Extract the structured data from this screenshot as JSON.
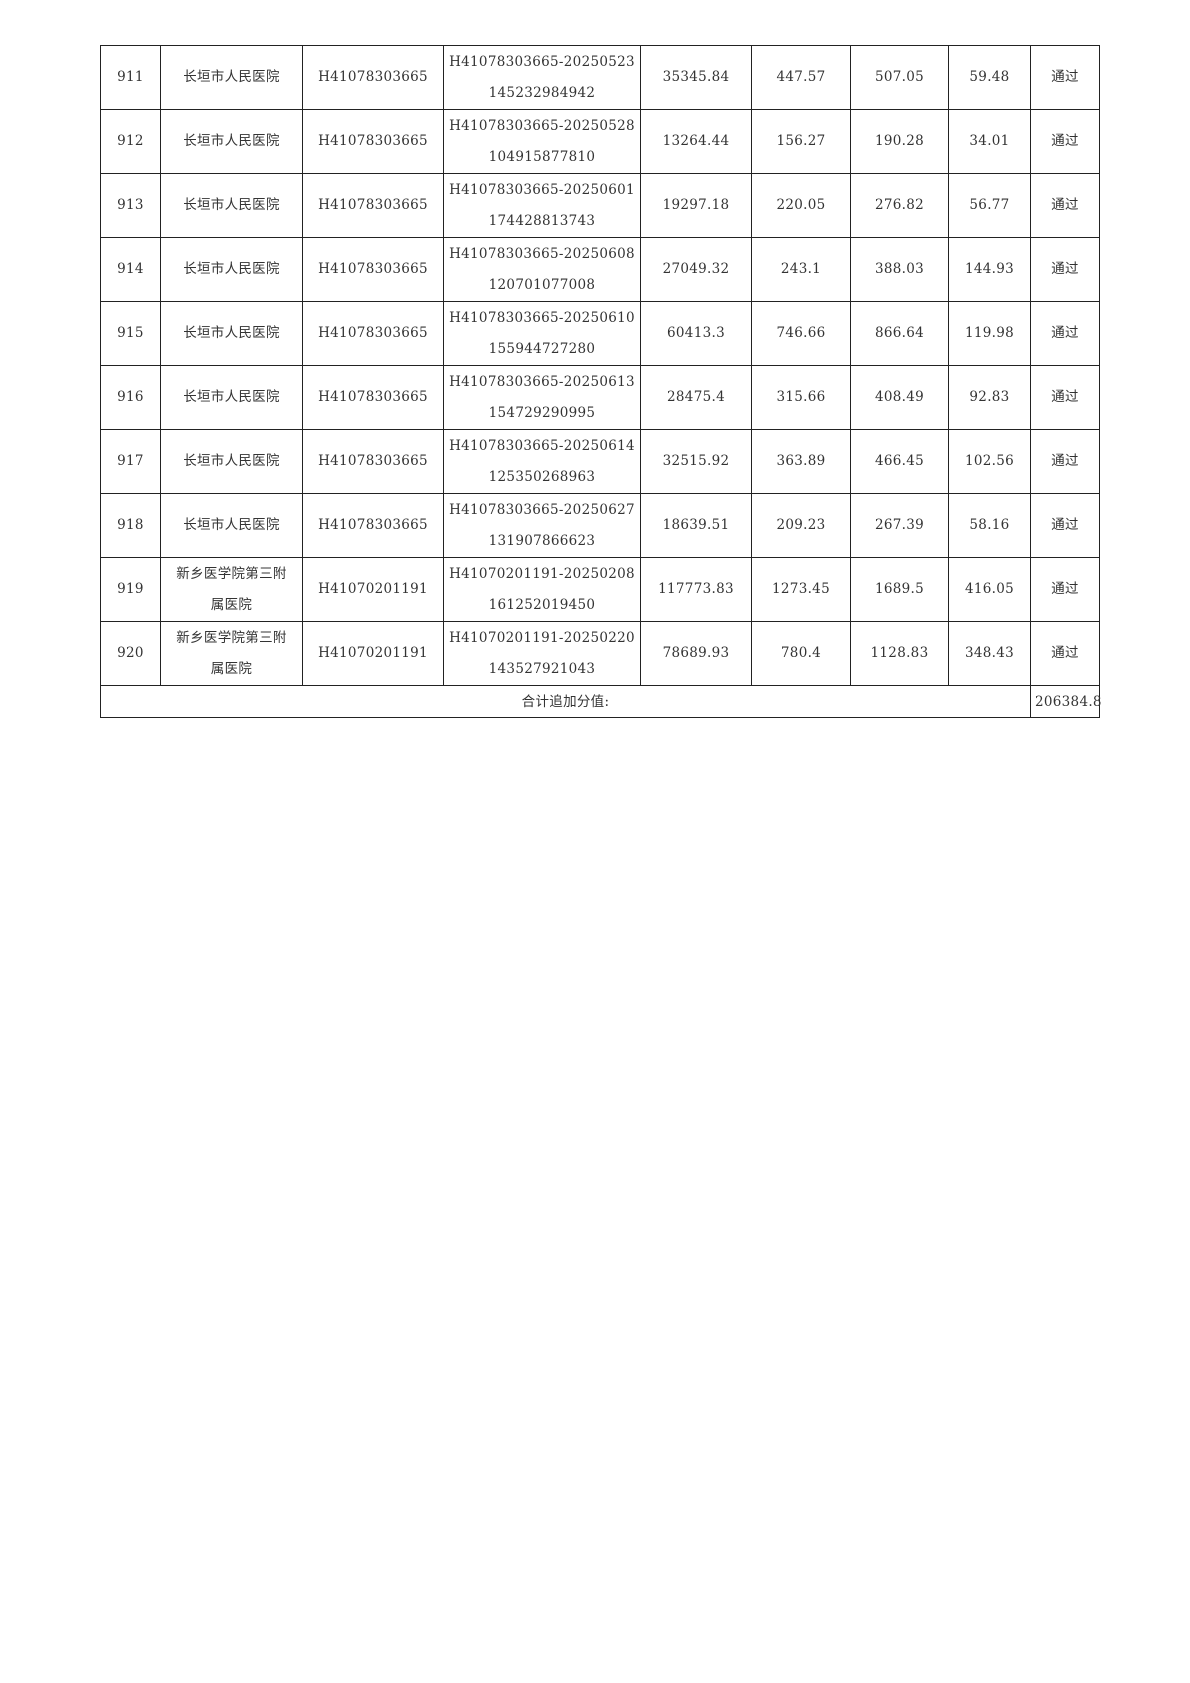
{
  "rows": [
    {
      "no": "911",
      "hospital": "长垣市人民医院",
      "code": "H41078303665",
      "id1": "H41078303665-20250523",
      "id2": "145232984942",
      "amount": "35345.84",
      "v1": "447.57",
      "v2": "507.05",
      "add": "59.48",
      "result": "通过"
    },
    {
      "no": "912",
      "hospital": "长垣市人民医院",
      "code": "H41078303665",
      "id1": "H41078303665-20250528",
      "id2": "104915877810",
      "amount": "13264.44",
      "v1": "156.27",
      "v2": "190.28",
      "add": "34.01",
      "result": "通过"
    },
    {
      "no": "913",
      "hospital": "长垣市人民医院",
      "code": "H41078303665",
      "id1": "H41078303665-20250601",
      "id2": "174428813743",
      "amount": "19297.18",
      "v1": "220.05",
      "v2": "276.82",
      "add": "56.77",
      "result": "通过"
    },
    {
      "no": "914",
      "hospital": "长垣市人民医院",
      "code": "H41078303665",
      "id1": "H41078303665-20250608",
      "id2": "120701077008",
      "amount": "27049.32",
      "v1": "243.1",
      "v2": "388.03",
      "add": "144.93",
      "result": "通过"
    },
    {
      "no": "915",
      "hospital": "长垣市人民医院",
      "code": "H41078303665",
      "id1": "H41078303665-20250610",
      "id2": "155944727280",
      "amount": "60413.3",
      "v1": "746.66",
      "v2": "866.64",
      "add": "119.98",
      "result": "通过"
    },
    {
      "no": "916",
      "hospital": "长垣市人民医院",
      "code": "H41078303665",
      "id1": "H41078303665-20250613",
      "id2": "154729290995",
      "amount": "28475.4",
      "v1": "315.66",
      "v2": "408.49",
      "add": "92.83",
      "result": "通过"
    },
    {
      "no": "917",
      "hospital": "长垣市人民医院",
      "code": "H41078303665",
      "id1": "H41078303665-20250614",
      "id2": "125350268963",
      "amount": "32515.92",
      "v1": "363.89",
      "v2": "466.45",
      "add": "102.56",
      "result": "通过"
    },
    {
      "no": "918",
      "hospital": "长垣市人民医院",
      "code": "H41078303665",
      "id1": "H41078303665-20250627",
      "id2": "131907866623",
      "amount": "18639.51",
      "v1": "209.23",
      "v2": "267.39",
      "add": "58.16",
      "result": "通过"
    },
    {
      "no": "919",
      "hospital": "新乡医学院第三附属医院",
      "code": "H41070201191",
      "id1": "H41070201191-20250208",
      "id2": "161252019450",
      "amount": "117773.83",
      "v1": "1273.45",
      "v2": "1689.5",
      "add": "416.05",
      "result": "通过"
    },
    {
      "no": "920",
      "hospital": "新乡医学院第三附属医院",
      "code": "H41070201191",
      "id1": "H41070201191-20250220",
      "id2": "143527921043",
      "amount": "78689.93",
      "v1": "780.4",
      "v2": "1128.83",
      "add": "348.43",
      "result": "通过"
    }
  ],
  "total": {
    "label": "合计追加分值:",
    "value": "206384.8"
  }
}
